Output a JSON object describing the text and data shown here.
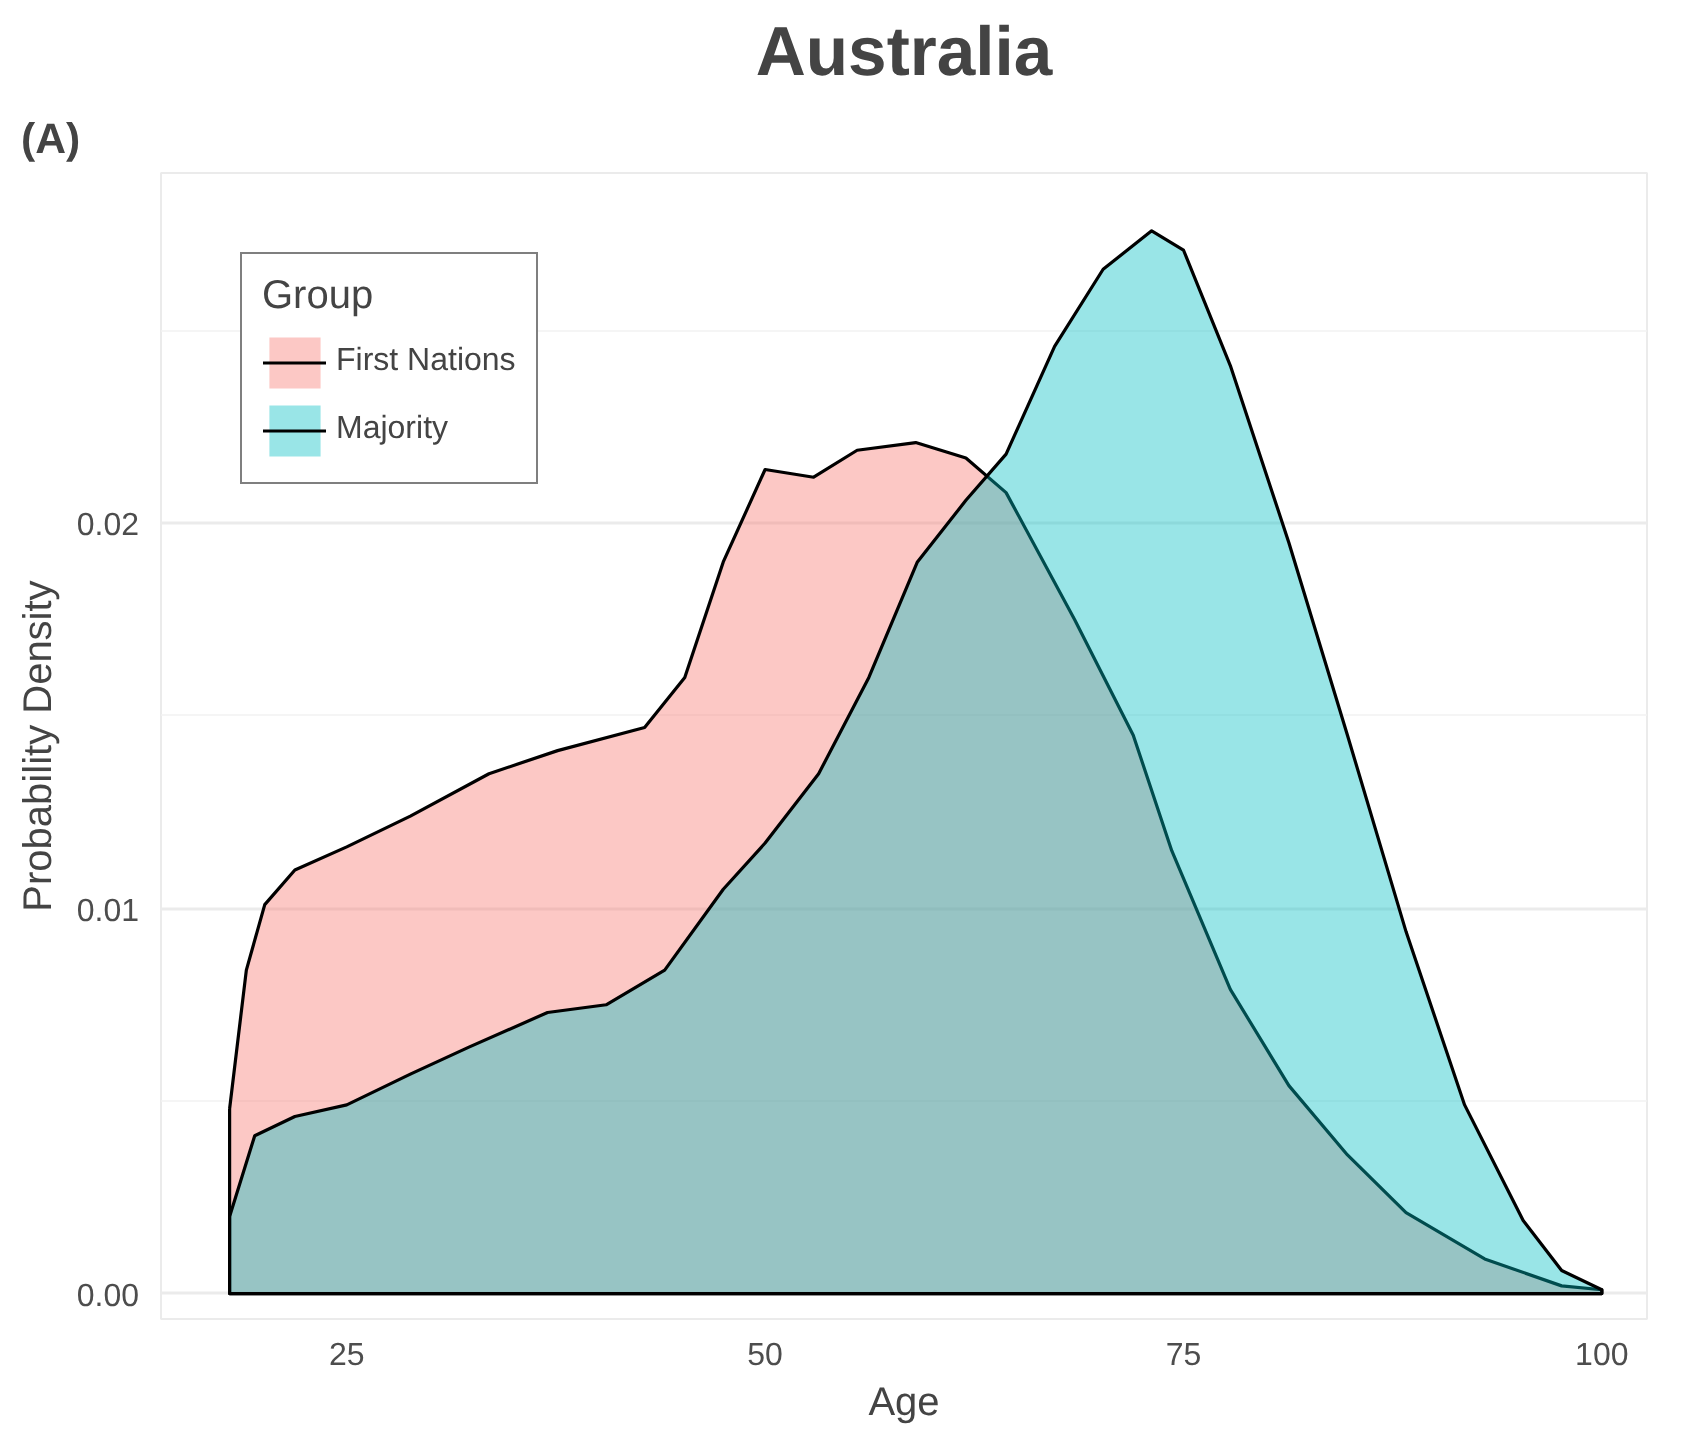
{
  "chart_data": {
    "type": "area",
    "title": "Australia",
    "xlabel": "Age",
    "ylabel": "Probability Density",
    "legend_title": "Group",
    "annotations": [
      "(A)"
    ],
    "xlim": [
      13.9,
      102.7
    ],
    "ylim": [
      -0.00066,
      0.0291
    ],
    "xticks": [
      25,
      50,
      75,
      100
    ],
    "yticks": [
      {
        "value": 0,
        "label": "0.00"
      },
      {
        "value": 0.01,
        "label": "0.01"
      },
      {
        "value": 0.02,
        "label": "0.02"
      }
    ],
    "grid": true,
    "legend": "top left",
    "series": [
      {
        "name": "First Nations",
        "color": "#f8766d",
        "x": [
          18,
          19,
          20.1,
          21.9,
          25,
          28.8,
          33.5,
          37.6,
          42.8,
          45.2,
          47.5,
          50,
          52.9,
          55.5,
          59,
          62,
          64.4,
          68.5,
          72,
          74.3,
          77.8,
          81.3,
          84.8,
          88.3,
          93,
          97.6,
          100
        ],
        "values": [
          0.0048,
          0.0084,
          0.0101,
          0.011,
          0.0116,
          0.0124,
          0.0135,
          0.0141,
          0.0147,
          0.016,
          0.019,
          0.0214,
          0.0212,
          0.0219,
          0.0221,
          0.0217,
          0.0208,
          0.0175,
          0.0145,
          0.0115,
          0.0079,
          0.0054,
          0.0036,
          0.0021,
          0.0009,
          0.0002,
          0.0001
        ]
      },
      {
        "name": "Majority",
        "color": "#00bfc4",
        "x": [
          18,
          19.5,
          21.9,
          25,
          28.8,
          32.3,
          37,
          40.5,
          44,
          47.5,
          50,
          53.2,
          56.2,
          59.1,
          62,
          64.4,
          67.3,
          70.2,
          73.1,
          75,
          77.8,
          81.3,
          84.8,
          88.3,
          91.8,
          95.3,
          97.6,
          100
        ],
        "values": [
          0.002,
          0.0041,
          0.0046,
          0.0049,
          0.0057,
          0.0064,
          0.0073,
          0.0075,
          0.0084,
          0.0105,
          0.0117,
          0.0135,
          0.016,
          0.019,
          0.0206,
          0.0218,
          0.0246,
          0.0266,
          0.0276,
          0.0271,
          0.0241,
          0.0195,
          0.0145,
          0.0094,
          0.0049,
          0.0019,
          0.0006,
          0.0001
        ]
      }
    ]
  }
}
